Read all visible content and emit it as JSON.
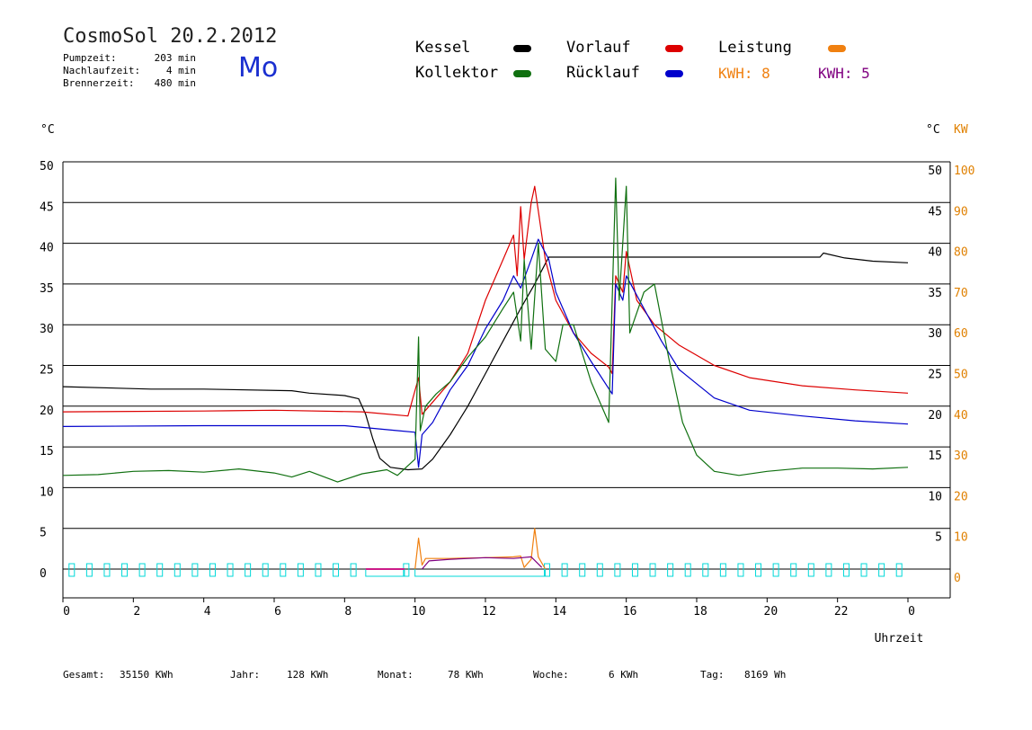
{
  "header": {
    "title": "CosmoSol 20.2.2012",
    "day": "Mo",
    "info": [
      {
        "label": "Pumpzeit:",
        "value": "203 min"
      },
      {
        "label": "Nachlaufzeit:",
        "value": "4 min"
      },
      {
        "label": "Brennerzeit:",
        "value": "480 min"
      }
    ]
  },
  "legend": {
    "kessel": "Kessel",
    "vorlauf": "Vorlauf",
    "leistung": "Leistung",
    "kollektor": "Kollektor",
    "ruecklauf": "Rücklauf",
    "kwh1": "KWH: 8",
    "kwh2": "KWH: 5"
  },
  "colors": {
    "kessel": "#000000",
    "vorlauf": "#dd0000",
    "ruecklauf": "#0000cc",
    "kollektor": "#107010",
    "leistung": "#f08010",
    "kwh2": "#800080",
    "pump": "#00d8d8"
  },
  "footer": {
    "gesamt_label": "Gesamt:",
    "gesamt_value": "35150 KWh",
    "jahr_label": "Jahr:",
    "jahr_value": "128 KWh",
    "monat_label": "Monat:",
    "monat_value": "78 KWh",
    "woche_label": "Woche:",
    "woche_value": "6 KWh",
    "tag_label": "Tag:",
    "tag_value": "8169 Wh"
  },
  "chart_data": {
    "type": "line",
    "xlabel": "Uhrzeit",
    "left_unit": "°C",
    "right_unit_c": "°C",
    "right_unit_kw": "KW",
    "x_ticks": [
      "0",
      "2",
      "4",
      "6",
      "8",
      "10",
      "12",
      "14",
      "16",
      "18",
      "20",
      "22",
      "0"
    ],
    "y_ticks_left": [
      "0",
      "5",
      "10",
      "15",
      "20",
      "25",
      "30",
      "35",
      "40",
      "45",
      "50"
    ],
    "y_ticks_right": [
      "5",
      "10",
      "15",
      "20",
      "25",
      "30",
      "35",
      "40",
      "45",
      "50"
    ],
    "kw_ticks": [
      "0",
      "10",
      "20",
      "30",
      "40",
      "50",
      "60",
      "70",
      "80",
      "90",
      "100"
    ],
    "xlim": [
      0,
      24
    ],
    "ylim": [
      0,
      50
    ],
    "grid": true,
    "series": [
      {
        "name": "Kessel",
        "key": "kessel",
        "points": [
          [
            0,
            22.4
          ],
          [
            2.5,
            22.1
          ],
          [
            4,
            22.1
          ],
          [
            6.5,
            21.9
          ],
          [
            7,
            21.6
          ],
          [
            8,
            21.3
          ],
          [
            8.4,
            20.9
          ],
          [
            8.6,
            19.0
          ],
          [
            8.8,
            16.0
          ],
          [
            9.0,
            13.6
          ],
          [
            9.3,
            12.5
          ],
          [
            9.8,
            12.2
          ],
          [
            10.2,
            12.3
          ],
          [
            10.5,
            13.5
          ],
          [
            11.0,
            16.5
          ],
          [
            11.5,
            20.0
          ],
          [
            12.0,
            24.0
          ],
          [
            12.5,
            28.0
          ],
          [
            13.0,
            32.0
          ],
          [
            13.4,
            35.0
          ],
          [
            13.7,
            37.5
          ],
          [
            13.8,
            38.3
          ],
          [
            15.0,
            38.3
          ],
          [
            18.0,
            38.3
          ],
          [
            21.5,
            38.3
          ],
          [
            21.6,
            38.8
          ],
          [
            22.2,
            38.2
          ],
          [
            23.0,
            37.8
          ],
          [
            24,
            37.6
          ]
        ]
      },
      {
        "name": "Vorlauf",
        "key": "vorlauf",
        "points": [
          [
            0,
            19.3
          ],
          [
            4,
            19.4
          ],
          [
            6,
            19.5
          ],
          [
            8.5,
            19.3
          ],
          [
            9.8,
            18.8
          ],
          [
            10.1,
            23.5
          ],
          [
            10.2,
            19.0
          ],
          [
            10.5,
            20.5
          ],
          [
            11.0,
            23.0
          ],
          [
            11.5,
            26.5
          ],
          [
            12.0,
            33.0
          ],
          [
            12.5,
            38.0
          ],
          [
            12.8,
            41.0
          ],
          [
            12.9,
            36.0
          ],
          [
            13.0,
            44.5
          ],
          [
            13.1,
            38.0
          ],
          [
            13.3,
            45.0
          ],
          [
            13.4,
            47.0
          ],
          [
            13.5,
            44.0
          ],
          [
            13.7,
            38.0
          ],
          [
            14.0,
            33.0
          ],
          [
            14.5,
            29.0
          ],
          [
            15.0,
            26.5
          ],
          [
            15.5,
            24.8
          ],
          [
            15.6,
            24.0
          ],
          [
            15.7,
            36.0
          ],
          [
            15.9,
            34.0
          ],
          [
            16.0,
            39.0
          ],
          [
            16.3,
            33.0
          ],
          [
            16.8,
            30.0
          ],
          [
            17.5,
            27.5
          ],
          [
            18.5,
            25.0
          ],
          [
            19.5,
            23.5
          ],
          [
            21.0,
            22.5
          ],
          [
            22.5,
            22.0
          ],
          [
            24,
            21.6
          ]
        ]
      },
      {
        "name": "Rücklauf",
        "key": "ruecklauf",
        "points": [
          [
            0,
            17.5
          ],
          [
            4,
            17.6
          ],
          [
            8,
            17.6
          ],
          [
            9.5,
            17.0
          ],
          [
            10.0,
            16.8
          ],
          [
            10.1,
            12.5
          ],
          [
            10.2,
            16.5
          ],
          [
            10.5,
            18.0
          ],
          [
            11.0,
            22.0
          ],
          [
            11.5,
            25.0
          ],
          [
            12.0,
            29.5
          ],
          [
            12.5,
            33.0
          ],
          [
            12.8,
            36.0
          ],
          [
            13.0,
            34.5
          ],
          [
            13.3,
            38.0
          ],
          [
            13.5,
            40.5
          ],
          [
            13.8,
            38.0
          ],
          [
            14.0,
            34.0
          ],
          [
            14.5,
            29.0
          ],
          [
            15.0,
            25.5
          ],
          [
            15.6,
            21.5
          ],
          [
            15.7,
            35.0
          ],
          [
            15.9,
            33.0
          ],
          [
            16.0,
            36.0
          ],
          [
            16.5,
            32.0
          ],
          [
            17.0,
            28.0
          ],
          [
            17.5,
            24.5
          ],
          [
            18.5,
            21.0
          ],
          [
            19.5,
            19.5
          ],
          [
            21.0,
            18.8
          ],
          [
            22.5,
            18.2
          ],
          [
            24,
            17.8
          ]
        ]
      },
      {
        "name": "Kollektor",
        "key": "kollektor",
        "points": [
          [
            0,
            11.5
          ],
          [
            1,
            11.6
          ],
          [
            2,
            12.0
          ],
          [
            3,
            12.1
          ],
          [
            4,
            11.9
          ],
          [
            5,
            12.3
          ],
          [
            6,
            11.8
          ],
          [
            6.5,
            11.3
          ],
          [
            7,
            12.0
          ],
          [
            7.8,
            10.7
          ],
          [
            8.5,
            11.7
          ],
          [
            9.2,
            12.2
          ],
          [
            9.5,
            11.5
          ],
          [
            10.0,
            13.5
          ],
          [
            10.1,
            28.5
          ],
          [
            10.15,
            17.0
          ],
          [
            10.3,
            20.0
          ],
          [
            10.6,
            21.5
          ],
          [
            11.0,
            23.0
          ],
          [
            11.5,
            26.0
          ],
          [
            12.0,
            28.5
          ],
          [
            12.5,
            32.0
          ],
          [
            12.8,
            34.0
          ],
          [
            13.0,
            28.0
          ],
          [
            13.1,
            38.0
          ],
          [
            13.3,
            27.0
          ],
          [
            13.5,
            40.0
          ],
          [
            13.7,
            27.0
          ],
          [
            14.0,
            25.5
          ],
          [
            14.2,
            30.0
          ],
          [
            14.5,
            30.0
          ],
          [
            15.0,
            23.0
          ],
          [
            15.5,
            18.0
          ],
          [
            15.7,
            48.0
          ],
          [
            15.8,
            33.0
          ],
          [
            16.0,
            47.0
          ],
          [
            16.1,
            29.0
          ],
          [
            16.5,
            34.0
          ],
          [
            16.8,
            35.0
          ],
          [
            17.2,
            26.0
          ],
          [
            17.6,
            18.0
          ],
          [
            18.0,
            14.0
          ],
          [
            18.5,
            12.0
          ],
          [
            19.2,
            11.5
          ],
          [
            20,
            12.0
          ],
          [
            21,
            12.4
          ],
          [
            22,
            12.4
          ],
          [
            23,
            12.3
          ],
          [
            24,
            12.5
          ]
        ]
      },
      {
        "name": "Leistung",
        "key": "leistung",
        "points": [
          [
            10.0,
            0
          ],
          [
            10.1,
            3.8
          ],
          [
            10.2,
            0.5
          ],
          [
            10.3,
            1.3
          ],
          [
            11.0,
            1.3
          ],
          [
            12.0,
            1.4
          ],
          [
            12.8,
            1.5
          ],
          [
            13.0,
            1.6
          ],
          [
            13.1,
            0.2
          ],
          [
            13.3,
            1.2
          ],
          [
            13.4,
            5.0
          ],
          [
            13.5,
            1.5
          ],
          [
            13.7,
            0
          ]
        ]
      },
      {
        "name": "KWH 5",
        "key": "kwh2",
        "points": [
          [
            10.2,
            0
          ],
          [
            10.4,
            1.0
          ],
          [
            11.0,
            1.2
          ],
          [
            12.0,
            1.4
          ],
          [
            12.8,
            1.3
          ],
          [
            13.3,
            1.5
          ],
          [
            13.6,
            0.2
          ]
        ]
      }
    ],
    "pump_on": [
      [
        8.6,
        9.7
      ],
      [
        10.0,
        13.7
      ]
    ]
  }
}
